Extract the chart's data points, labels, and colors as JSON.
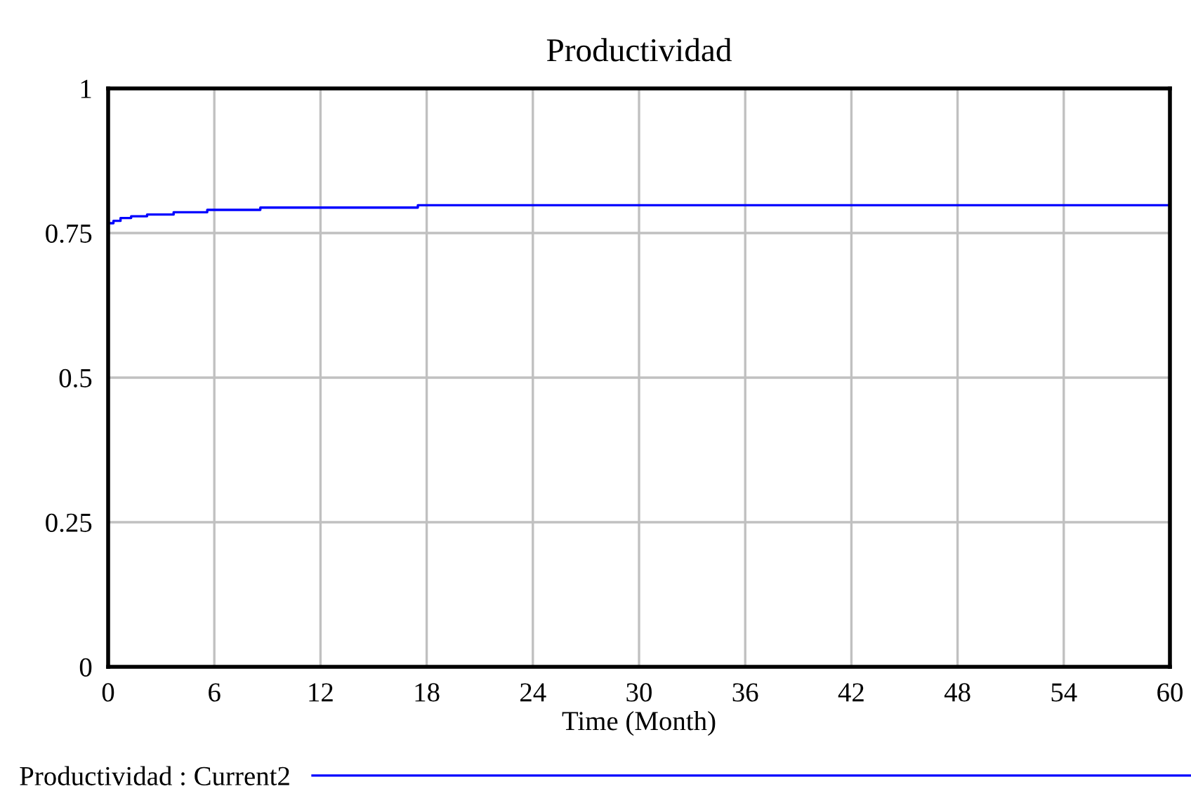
{
  "chart_data": {
    "type": "step",
    "title": "Productividad",
    "xlabel": "Time (Month)",
    "x": [
      0,
      0.3,
      0.7,
      1.3,
      2.2,
      3.7,
      5.6,
      8.6,
      17.5,
      60
    ],
    "series": [
      {
        "name": "Productividad : Current2",
        "color": "#0000ff",
        "values": [
          0.767,
          0.771,
          0.776,
          0.779,
          0.782,
          0.786,
          0.79,
          0.794,
          0.798,
          0.798
        ]
      }
    ],
    "xlim": [
      0,
      60
    ],
    "xticks": [
      0,
      6,
      12,
      18,
      24,
      30,
      36,
      42,
      48,
      54,
      60
    ],
    "ylim": [
      0,
      1
    ],
    "yticks": [
      0,
      0.25,
      0.5,
      0.75,
      1
    ],
    "grid": true,
    "legend": "bottom"
  }
}
